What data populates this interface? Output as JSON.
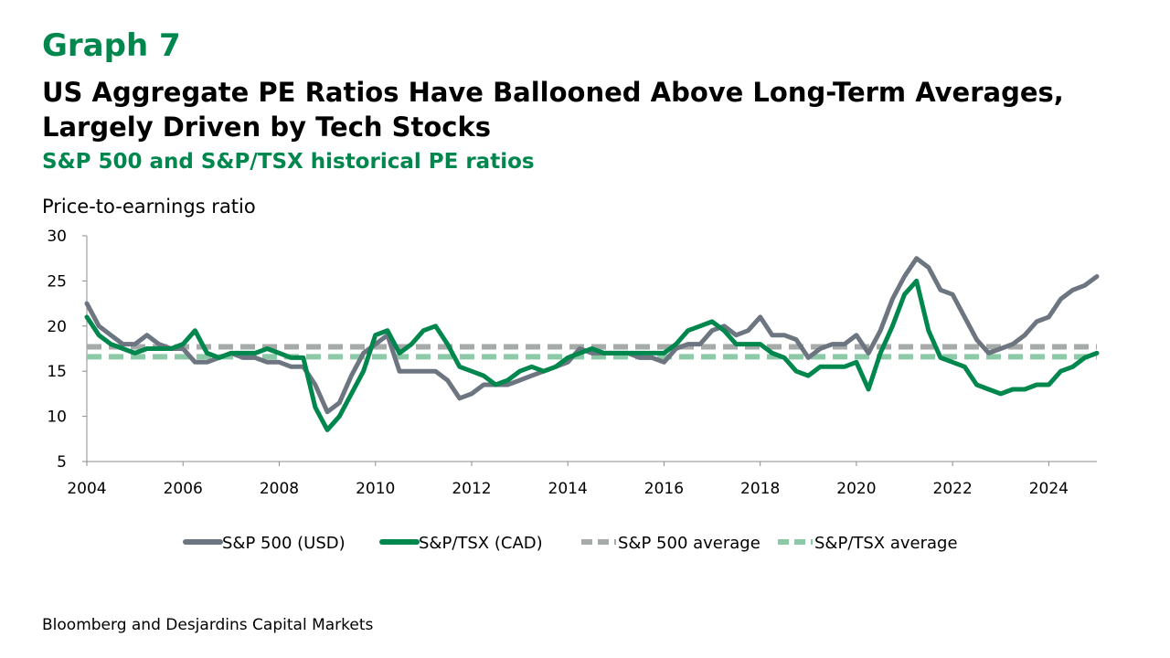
{
  "graph_number": "Graph 7",
  "title": "US Aggregate PE Ratios Have Ballooned Above Long-Term Averages, Largely Driven by Tech Stocks",
  "subtitle": "S&P 500 and S&P/TSX historical PE ratios",
  "source": "Bloomberg and Desjardins Capital Markets",
  "colors": {
    "title_green": "#00874E",
    "sp500": "#6D7680",
    "tsx": "#00874E",
    "sp500_avg": "#A6AAA9",
    "tsx_avg": "#8CC9A7"
  },
  "chart_data": {
    "type": "line",
    "ylabel": "Price-to-earnings ratio",
    "xlabel": "",
    "xlim": [
      2004,
      2025
    ],
    "ylim": [
      5,
      30
    ],
    "x_ticks": [
      "2004",
      "2006",
      "2008",
      "2010",
      "2012",
      "2014",
      "2016",
      "2018",
      "2020",
      "2022",
      "2024"
    ],
    "y_ticks": [
      "30",
      "25",
      "20",
      "15",
      "10",
      "5"
    ],
    "legend_position": "bottom",
    "grid": false,
    "series": [
      {
        "name": "S&P 500 (USD)",
        "x": [
          2004.0,
          2004.25,
          2004.5,
          2004.75,
          2005.0,
          2005.25,
          2005.5,
          2005.75,
          2006.0,
          2006.25,
          2006.5,
          2006.75,
          2007.0,
          2007.25,
          2007.5,
          2007.75,
          2008.0,
          2008.25,
          2008.5,
          2008.75,
          2009.0,
          2009.25,
          2009.5,
          2009.75,
          2010.0,
          2010.25,
          2010.5,
          2010.75,
          2011.0,
          2011.25,
          2011.5,
          2011.75,
          2012.0,
          2012.25,
          2012.5,
          2012.75,
          2013.0,
          2013.25,
          2013.5,
          2013.75,
          2014.0,
          2014.25,
          2014.5,
          2014.75,
          2015.0,
          2015.25,
          2015.5,
          2015.75,
          2016.0,
          2016.25,
          2016.5,
          2016.75,
          2017.0,
          2017.25,
          2017.5,
          2017.75,
          2018.0,
          2018.25,
          2018.5,
          2018.75,
          2019.0,
          2019.25,
          2019.5,
          2019.75,
          2020.0,
          2020.25,
          2020.5,
          2020.75,
          2021.0,
          2021.25,
          2021.5,
          2021.75,
          2022.0,
          2022.25,
          2022.5,
          2022.75,
          2023.0,
          2023.25,
          2023.5,
          2023.75,
          2024.0,
          2024.25,
          2024.5,
          2024.75,
          2025.0
        ],
        "values": [
          22.5,
          20.0,
          19.0,
          18.0,
          18.0,
          19.0,
          18.0,
          17.5,
          17.5,
          16.0,
          16.0,
          16.5,
          17.0,
          16.5,
          16.5,
          16.0,
          16.0,
          15.5,
          15.5,
          13.5,
          10.5,
          11.5,
          14.5,
          17.0,
          18.0,
          19.0,
          15.0,
          15.0,
          15.0,
          15.0,
          14.0,
          12.0,
          12.5,
          13.5,
          13.5,
          13.5,
          14.0,
          14.5,
          15.0,
          15.5,
          16.0,
          17.5,
          17.0,
          17.0,
          17.0,
          17.0,
          16.5,
          16.5,
          16.0,
          17.5,
          18.0,
          18.0,
          19.5,
          20.0,
          19.0,
          19.5,
          21.0,
          19.0,
          19.0,
          18.5,
          16.5,
          17.5,
          18.0,
          18.0,
          19.0,
          17.0,
          19.5,
          23.0,
          25.5,
          27.5,
          26.5,
          24.0,
          23.5,
          21.0,
          18.5,
          17.0,
          17.5,
          18.0,
          19.0,
          20.5,
          21.0,
          23.0,
          24.0,
          24.5,
          25.5
        ]
      },
      {
        "name": "S&P/TSX (CAD)",
        "x": [
          2004.0,
          2004.25,
          2004.5,
          2004.75,
          2005.0,
          2005.25,
          2005.5,
          2005.75,
          2006.0,
          2006.25,
          2006.5,
          2006.75,
          2007.0,
          2007.25,
          2007.5,
          2007.75,
          2008.0,
          2008.25,
          2008.5,
          2008.75,
          2009.0,
          2009.25,
          2009.5,
          2009.75,
          2010.0,
          2010.25,
          2010.5,
          2010.75,
          2011.0,
          2011.25,
          2011.5,
          2011.75,
          2012.0,
          2012.25,
          2012.5,
          2012.75,
          2013.0,
          2013.25,
          2013.5,
          2013.75,
          2014.0,
          2014.25,
          2014.5,
          2014.75,
          2015.0,
          2015.25,
          2015.5,
          2015.75,
          2016.0,
          2016.25,
          2016.5,
          2016.75,
          2017.0,
          2017.25,
          2017.5,
          2017.75,
          2018.0,
          2018.25,
          2018.5,
          2018.75,
          2019.0,
          2019.25,
          2019.5,
          2019.75,
          2020.0,
          2020.25,
          2020.5,
          2020.75,
          2021.0,
          2021.25,
          2021.5,
          2021.75,
          2022.0,
          2022.25,
          2022.5,
          2022.75,
          2023.0,
          2023.25,
          2023.5,
          2023.75,
          2024.0,
          2024.25,
          2024.5,
          2024.75,
          2025.0
        ],
        "values": [
          21.0,
          19.0,
          18.0,
          17.5,
          17.0,
          17.5,
          17.5,
          17.5,
          18.0,
          19.5,
          17.0,
          16.5,
          17.0,
          17.0,
          17.0,
          17.5,
          17.0,
          16.5,
          16.5,
          11.0,
          8.5,
          10.0,
          12.5,
          15.0,
          19.0,
          19.5,
          17.0,
          18.0,
          19.5,
          20.0,
          18.0,
          15.5,
          15.0,
          14.5,
          13.5,
          14.0,
          15.0,
          15.5,
          15.0,
          15.5,
          16.5,
          17.0,
          17.5,
          17.0,
          17.0,
          17.0,
          17.0,
          17.0,
          17.0,
          18.0,
          19.5,
          20.0,
          20.5,
          19.5,
          18.0,
          18.0,
          18.0,
          17.0,
          16.5,
          15.0,
          14.5,
          15.5,
          15.5,
          15.5,
          16.0,
          13.0,
          17.0,
          20.0,
          23.5,
          25.0,
          19.5,
          16.5,
          16.0,
          15.5,
          13.5,
          13.0,
          12.5,
          13.0,
          13.0,
          13.5,
          13.5,
          15.0,
          15.5,
          16.5,
          17.0
        ]
      },
      {
        "name": "S&P 500 average",
        "style": "dashed",
        "value": 17.7
      },
      {
        "name": "S&P/TSX average",
        "style": "dashed",
        "value": 16.6
      }
    ]
  }
}
